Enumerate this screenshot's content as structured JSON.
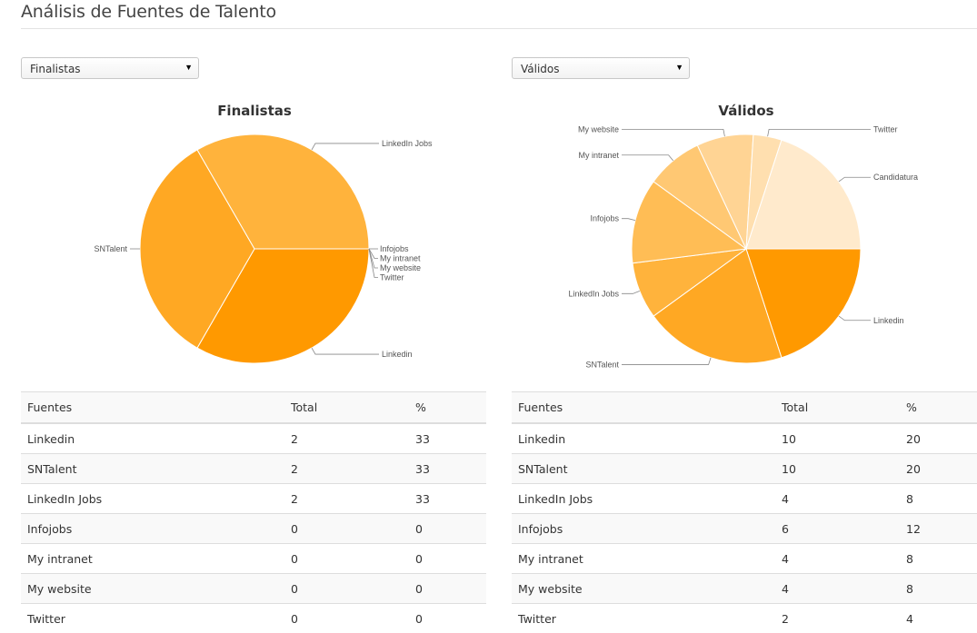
{
  "page": {
    "title": "Análisis de Fuentes de Talento"
  },
  "filters": {
    "left": {
      "selected": "Finalistas"
    },
    "right": {
      "selected": "Válidos"
    }
  },
  "tables": {
    "columns": [
      "Fuentes",
      "Total",
      "%"
    ],
    "left": [
      [
        "Linkedin",
        "2",
        "33"
      ],
      [
        "SNTalent",
        "2",
        "33"
      ],
      [
        "LinkedIn Jobs",
        "2",
        "33"
      ],
      [
        "Infojobs",
        "0",
        "0"
      ],
      [
        "My intranet",
        "0",
        "0"
      ],
      [
        "My website",
        "0",
        "0"
      ],
      [
        "Twitter",
        "0",
        "0"
      ]
    ],
    "right": [
      [
        "Linkedin",
        "10",
        "20"
      ],
      [
        "SNTalent",
        "10",
        "20"
      ],
      [
        "LinkedIn Jobs",
        "4",
        "8"
      ],
      [
        "Infojobs",
        "6",
        "12"
      ],
      [
        "My intranet",
        "4",
        "8"
      ],
      [
        "My website",
        "4",
        "8"
      ],
      [
        "Twitter",
        "2",
        "4"
      ]
    ]
  },
  "chart_data": [
    {
      "type": "pie",
      "title": "Finalistas",
      "slices": [
        {
          "label": "Linkedin",
          "value": 2,
          "color": "#ff9900"
        },
        {
          "label": "SNTalent",
          "value": 2,
          "color": "#ffa823"
        },
        {
          "label": "LinkedIn Jobs",
          "value": 2,
          "color": "#ffb33c"
        },
        {
          "label": "Infojobs",
          "value": 0,
          "color": "#ffbd55"
        },
        {
          "label": "My intranet",
          "value": 0,
          "color": "#ffc873"
        },
        {
          "label": "My website",
          "value": 0,
          "color": "#ffd494"
        },
        {
          "label": "Twitter",
          "value": 0,
          "color": "#ffdfaf"
        }
      ]
    },
    {
      "type": "pie",
      "title": "Válidos",
      "slices": [
        {
          "label": "Linkedin",
          "value": 10,
          "color": "#ff9900"
        },
        {
          "label": "SNTalent",
          "value": 10,
          "color": "#ffa823"
        },
        {
          "label": "LinkedIn Jobs",
          "value": 4,
          "color": "#ffb33c"
        },
        {
          "label": "Infojobs",
          "value": 6,
          "color": "#ffbd55"
        },
        {
          "label": "My intranet",
          "value": 4,
          "color": "#ffc873"
        },
        {
          "label": "My website",
          "value": 4,
          "color": "#ffd494"
        },
        {
          "label": "Twitter",
          "value": 2,
          "color": "#ffdfaf"
        },
        {
          "label": "Candidatura",
          "value": 10,
          "color": "#ffeacc"
        }
      ]
    }
  ]
}
